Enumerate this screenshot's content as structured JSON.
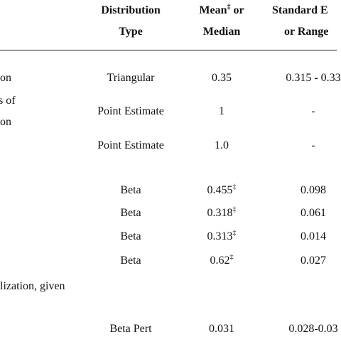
{
  "header": {
    "type": {
      "line1": "Distribution",
      "line2": "Type"
    },
    "mean": {
      "line1": "Mean",
      "sup": "‡",
      "line1_end": " or",
      "line2": "Median"
    },
    "range": {
      "line1": "Standard E",
      "line2": "or Range"
    }
  },
  "rows": [
    {
      "label": [
        "on"
      ],
      "type": "Triangular",
      "mean": "0.35",
      "range": "0.315 - 0.33"
    },
    {
      "label": [
        "s of",
        "on"
      ],
      "type": "Point Estimate",
      "mean": "1",
      "range": "-"
    },
    {
      "label": [],
      "type": "Point Estimate",
      "mean": "1.0",
      "range": "-"
    },
    {
      "label": [],
      "type": "Beta",
      "mean": "0.455",
      "sup": "‡",
      "range": "0.098"
    },
    {
      "label": [],
      "type": "Beta",
      "mean": "0.318",
      "sup": "‡",
      "range": "0.061"
    },
    {
      "label": [],
      "type": "Beta",
      "mean": "0.313",
      "sup": "‡",
      "range": "0.014"
    },
    {
      "label": [],
      "type": "Beta",
      "mean": "0.62",
      "sup": "‡",
      "range": "0.027"
    },
    {
      "label": [
        "lization, given"
      ]
    },
    {
      "label": [],
      "type": "Beta Pert",
      "mean": "0.031",
      "range": "0.028-0.03"
    }
  ]
}
